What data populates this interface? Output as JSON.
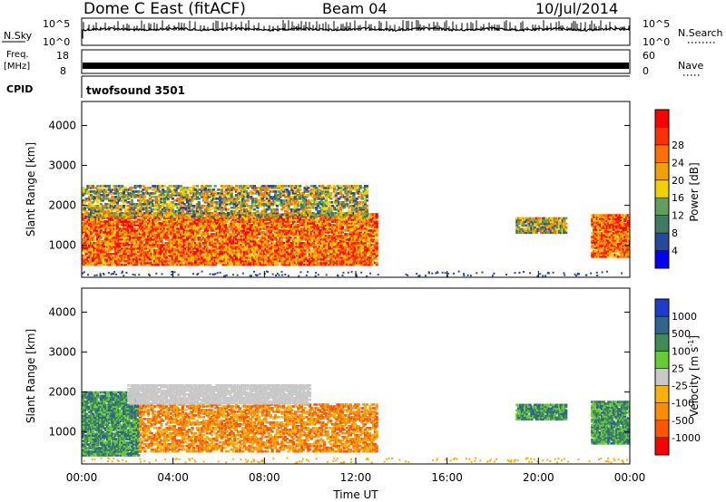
{
  "header": {
    "station": "Dome C East (fitACF)",
    "beam": "Beam 04",
    "date": "10/Jul/2014"
  },
  "panels": {
    "nsky": {
      "label": "N.Sky",
      "top_tick": "10^5",
      "bottom_tick": "10^0",
      "right_label": "N.Search",
      "right_top": "10^5",
      "right_bottom": "10^0"
    },
    "freq": {
      "label_line1": "Freq.",
      "label_line2": "[MHz]",
      "top_tick": "18",
      "bottom_tick": "8",
      "right_label": "Nave",
      "right_top": "60",
      "right_bottom": "0"
    },
    "cpid": {
      "label": "CPID",
      "value": "twofsound 3501"
    }
  },
  "colors": {
    "power_scale": [
      "#0000ff",
      "#2449a0",
      "#3f7a64",
      "#5fa05a",
      "#f0d000",
      "#f0a000",
      "#ff7000",
      "#ff3000",
      "#ff0000"
    ],
    "velocity_scale": [
      "#ff0000",
      "#ff5500",
      "#ff8c00",
      "#ffb000",
      "#c8c8c8",
      "#66cc33",
      "#3f8c55",
      "#30668a",
      "#1e3ccd"
    ]
  },
  "chart_data": [
    {
      "type": "heatmap",
      "title": "Power",
      "xlabel": "",
      "ylabel": "Slant Range [km]",
      "x_ticks": [
        "00:00",
        "04:00",
        "08:00",
        "12:00",
        "16:00",
        "20:00",
        "00:00"
      ],
      "y_ticks": [
        "1000",
        "2000",
        "3000",
        "4000"
      ],
      "xlim_hours": [
        0,
        24
      ],
      "ylim_km": [
        200,
        4600
      ],
      "colorbar": {
        "label": "Power [dB]",
        "ticks": [
          "4",
          "8",
          "12",
          "16",
          "20",
          "24",
          "28"
        ],
        "range": [
          0,
          30
        ]
      },
      "regions": [
        {
          "t_start": 0.0,
          "t_end": 12.9,
          "r_start": 500,
          "r_end": 1800,
          "level": "high (~20-30 dB)"
        },
        {
          "t_start": 0.0,
          "t_end": 12.5,
          "r_start": 1700,
          "r_end": 2500,
          "level": "medium (~8-20 dB)"
        },
        {
          "t_start": 19.0,
          "t_end": 21.2,
          "r_start": 1300,
          "r_end": 1700,
          "level": "mixed"
        },
        {
          "t_start": 22.3,
          "t_end": 24.0,
          "r_start": 700,
          "r_end": 1800,
          "level": "high"
        }
      ]
    },
    {
      "type": "heatmap",
      "title": "Velocity",
      "xlabel": "Time UT",
      "ylabel": "Slant Range [km]",
      "x_ticks": [
        "00:00",
        "04:00",
        "08:00",
        "12:00",
        "16:00",
        "20:00",
        "00:00"
      ],
      "y_ticks": [
        "1000",
        "2000",
        "3000",
        "4000"
      ],
      "xlim_hours": [
        0,
        24
      ],
      "ylim_km": [
        200,
        4600
      ],
      "colorbar": {
        "label": "Velocity [m s^-1]",
        "ticks": [
          "1000",
          "500",
          "100",
          "25",
          "-25",
          "-100",
          "-500",
          "-1000"
        ]
      },
      "regions": [
        {
          "t_start": 0.0,
          "t_end": 2.5,
          "r_start": 400,
          "r_end": 2000,
          "level": "positive (~100-500)"
        },
        {
          "t_start": 2.5,
          "t_end": 12.9,
          "r_start": 500,
          "r_end": 1700,
          "level": "negative (~-100 to -500)"
        },
        {
          "t_start": 2.0,
          "t_end": 10.0,
          "r_start": 1700,
          "r_end": 2200,
          "level": "near zero"
        },
        {
          "t_start": 19.0,
          "t_end": 21.2,
          "r_start": 1300,
          "r_end": 1700,
          "level": "positive"
        },
        {
          "t_start": 22.3,
          "t_end": 24.0,
          "r_start": 700,
          "r_end": 1800,
          "level": "positive"
        }
      ]
    }
  ]
}
